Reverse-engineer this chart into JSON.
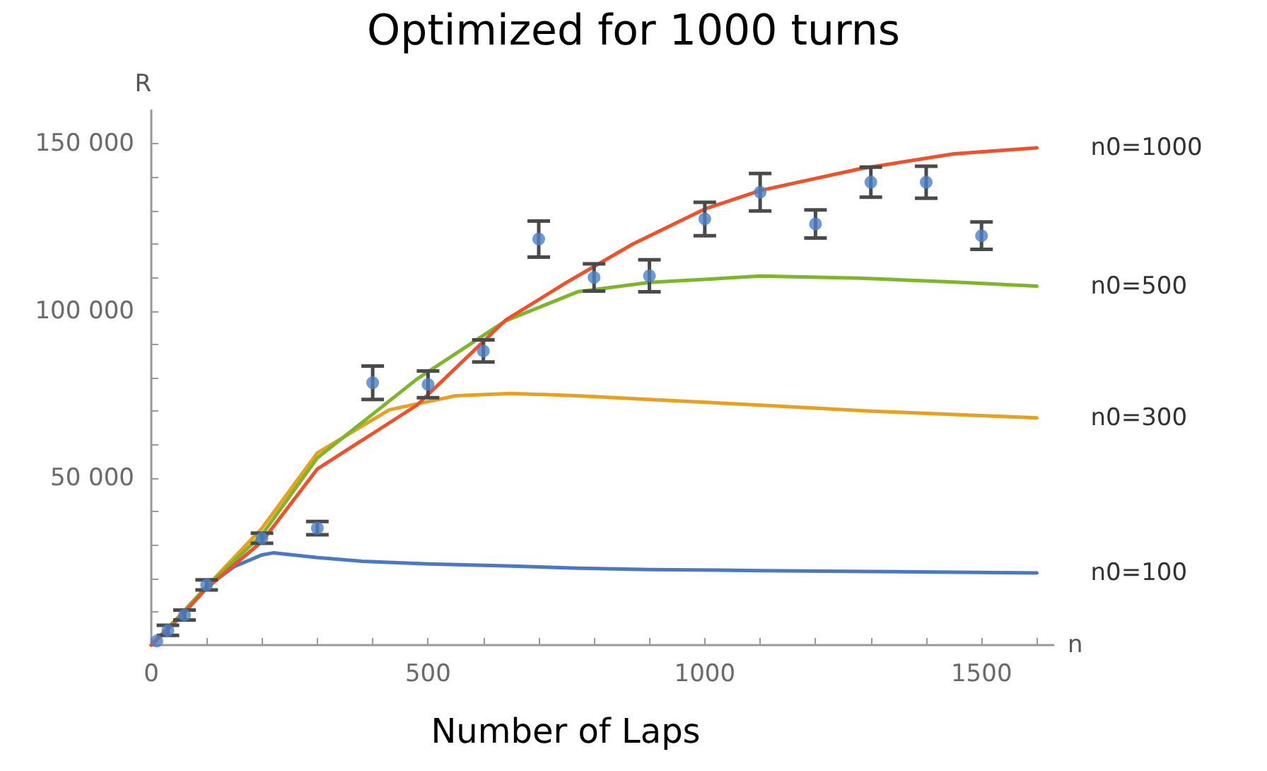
{
  "chart_data": {
    "type": "line",
    "title": "Optimized for 1000 turns",
    "ylabel": "R",
    "xlabel": "n",
    "annotations": [
      "Number of Laps"
    ],
    "xlim": [
      0,
      1630
    ],
    "ylim": [
      0,
      160000
    ],
    "xticks": [
      0,
      {
        "value": 100,
        "label": null
      },
      {
        "value": 200,
        "label": null
      },
      {
        "value": 300,
        "label": null
      },
      {
        "value": 400,
        "label": null
      },
      500,
      {
        "value": 600,
        "label": null
      },
      {
        "value": 700,
        "label": null
      },
      {
        "value": 800,
        "label": null
      },
      {
        "value": 900,
        "label": null
      },
      1000,
      {
        "value": 1100,
        "label": null
      },
      {
        "value": 1200,
        "label": null
      },
      {
        "value": 1300,
        "label": null
      },
      {
        "value": 1400,
        "label": null
      },
      1500,
      {
        "value": 1600,
        "label": null
      }
    ],
    "yticks": [
      {
        "value": 0,
        "label": null
      },
      {
        "value": 10000,
        "label": null
      },
      {
        "value": 20000,
        "label": null
      },
      {
        "value": 30000,
        "label": null
      },
      {
        "value": 40000,
        "label": null
      },
      {
        "value": 50000,
        "label": "50 000"
      },
      {
        "value": 60000,
        "label": null
      },
      {
        "value": 70000,
        "label": null
      },
      {
        "value": 80000,
        "label": null
      },
      {
        "value": 90000,
        "label": null
      },
      {
        "value": 100000,
        "label": "100 000"
      },
      {
        "value": 110000,
        "label": null
      },
      {
        "value": 120000,
        "label": null
      },
      {
        "value": 130000,
        "label": null
      },
      {
        "value": 140000,
        "label": null
      },
      {
        "value": 150000,
        "label": "150 000"
      }
    ],
    "grid": false,
    "legend": false,
    "marker": "none",
    "line_style": "solid",
    "series": [
      {
        "name": "n0=100",
        "color": "#4a78c2",
        "x": [
          0,
          50,
          100,
          150,
          200,
          220,
          300,
          380,
          500,
          640,
          770,
          900,
          1100,
          1300,
          1600
        ],
        "values": [
          0,
          8500,
          17500,
          23500,
          27000,
          27600,
          26200,
          25100,
          24300,
          23700,
          23000,
          22600,
          22300,
          22000,
          21600
        ]
      },
      {
        "name": "n0=300",
        "color": "#e8a020",
        "x": [
          0,
          50,
          100,
          200,
          300,
          430,
          550,
          650,
          770,
          900,
          1100,
          1300,
          1600
        ],
        "values": [
          0,
          8500,
          17500,
          35000,
          57500,
          70400,
          74600,
          75300,
          74600,
          73500,
          71800,
          70000,
          68000
        ]
      },
      {
        "name": "n0=500",
        "color": "#7fb52a",
        "x": [
          0,
          50,
          100,
          200,
          300,
          480,
          640,
          770,
          900,
          1100,
          1280,
          1450,
          1600
        ],
        "values": [
          0,
          8500,
          17500,
          33000,
          56000,
          79600,
          97000,
          105700,
          108500,
          110400,
          109800,
          108600,
          107400
        ]
      },
      {
        "name": "n0=1000",
        "color": "#f0502a",
        "x": [
          0,
          50,
          100,
          200,
          300,
          480,
          640,
          750,
          870,
          1000,
          1100,
          1280,
          1450,
          1600
        ],
        "values": [
          0,
          8000,
          17000,
          31000,
          52700,
          71800,
          97200,
          108500,
          120000,
          130500,
          136000,
          142500,
          147000,
          148800
        ]
      },
      {
        "type": "scatter",
        "color": "#4a80c6",
        "marker": "circle",
        "x": [
          10,
          30,
          60,
          100,
          200,
          300,
          400,
          500,
          600,
          700,
          800,
          900,
          1000,
          1100,
          1200,
          1300,
          1400,
          1500
        ],
        "values": [
          1200,
          4400,
          9000,
          18000,
          32000,
          35000,
          78500,
          78000,
          88000,
          121500,
          110000,
          110500,
          127500,
          135500,
          126000,
          138500,
          138500,
          122500
        ],
        "errors": [
          null,
          1500,
          1500,
          1500,
          1500,
          2000,
          5000,
          4000,
          3300,
          5400,
          4100,
          4800,
          5000,
          5600,
          4200,
          4500,
          4800,
          4100
        ]
      }
    ]
  }
}
